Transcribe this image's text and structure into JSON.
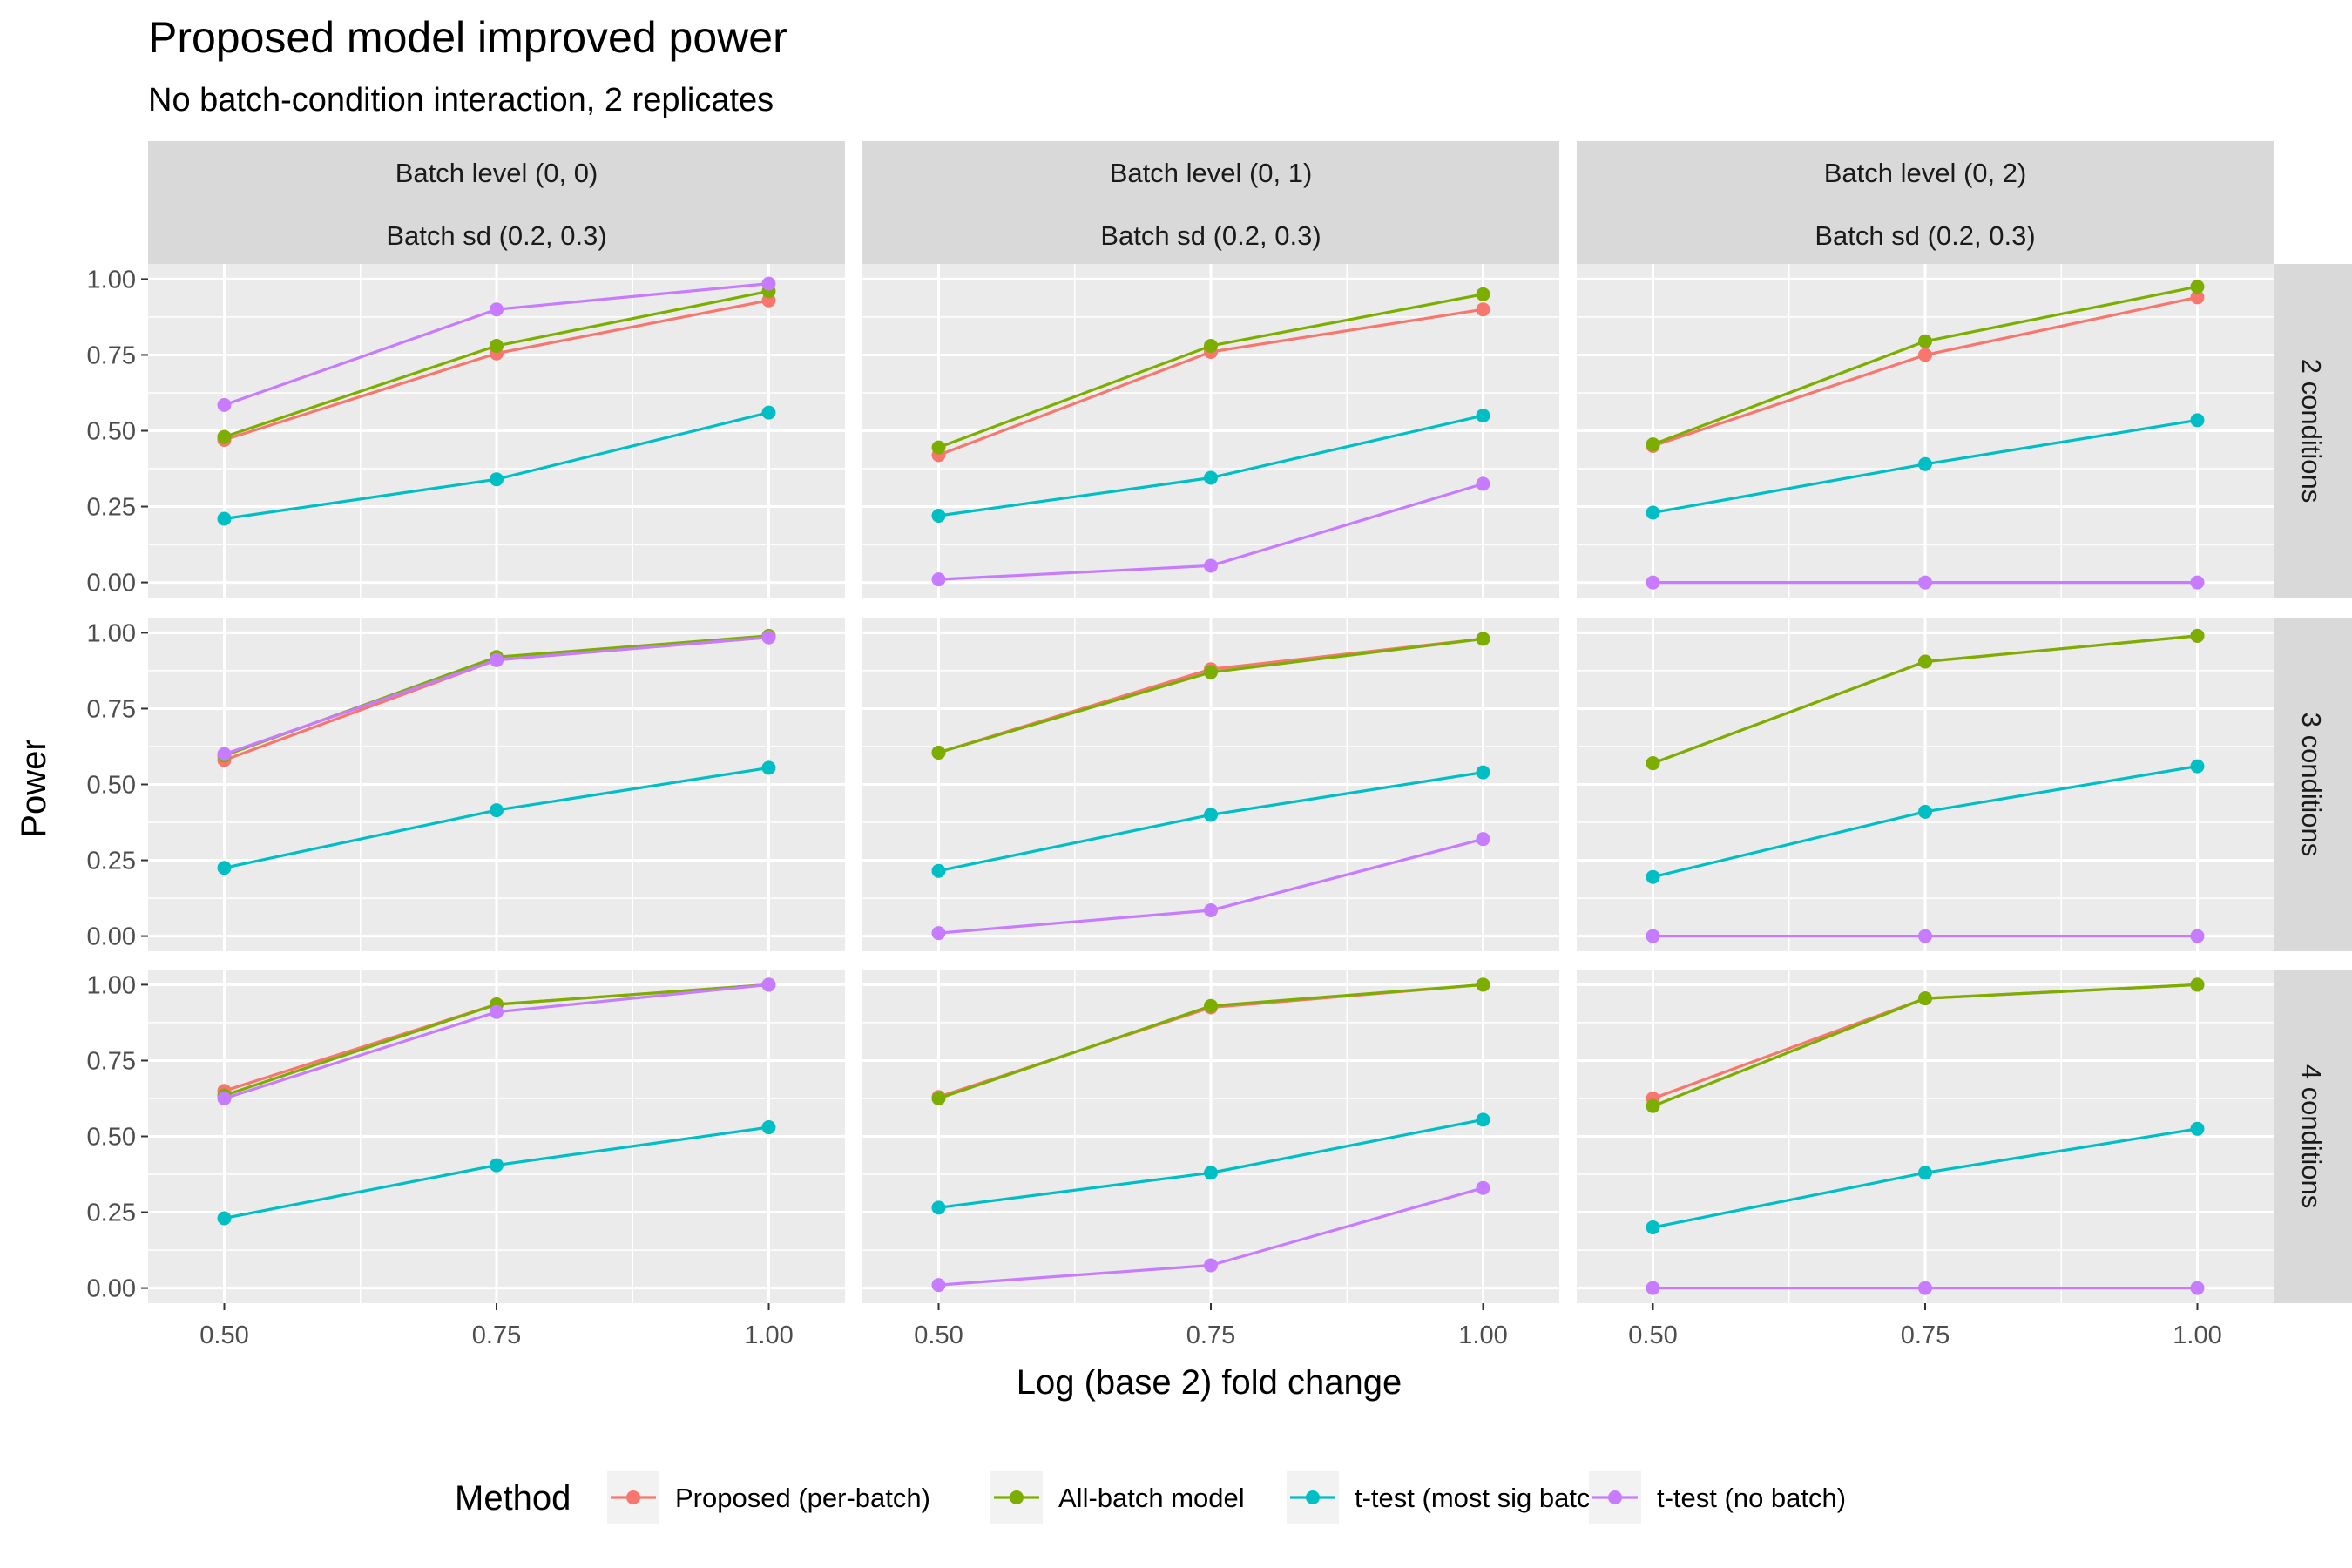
{
  "chart_data": {
    "type": "line",
    "title": "Proposed model improved power",
    "subtitle": "No batch-condition interaction, 2 replicates",
    "xlabel": "Log (base 2) fold change",
    "ylabel": "Power",
    "x": [
      0.5,
      0.75,
      1.0
    ],
    "x_tick_labels": [
      "0.50",
      "0.75",
      "1.00"
    ],
    "xlim": [
      0.43,
      1.07
    ],
    "ylim": [
      -0.05,
      1.05
    ],
    "y_ticks": [
      0,
      0.25,
      0.5,
      0.75,
      1.0
    ],
    "y_tick_labels": [
      "0.00",
      "0.25",
      "0.50",
      "0.75",
      "1.00"
    ],
    "grid": true,
    "legend": {
      "title": "Method",
      "position": "bottom",
      "entries": [
        "Proposed (per-batch)",
        "All-batch model",
        "t-test (most sig batch)",
        "t-test (no batch)"
      ]
    },
    "series_colors": {
      "Proposed (per-batch)": "#F8766D",
      "All-batch model": "#7CAE00",
      "t-test (most sig batch)": "#00BFC4",
      "t-test (no batch)": "#C77CFF"
    },
    "col_strips": [
      [
        "Batch level (0, 0)",
        "Batch sd (0.2, 0.3)"
      ],
      [
        "Batch level (0, 1)",
        "Batch sd (0.2, 0.3)"
      ],
      [
        "Batch level (0, 2)",
        "Batch sd (0.2, 0.3)"
      ]
    ],
    "row_strips": [
      "2 conditions",
      "3 conditions",
      "4 conditions"
    ],
    "panels": [
      [
        {
          "series": [
            {
              "name": "Proposed (per-batch)",
              "values": [
                0.47,
                0.755,
                0.93
              ]
            },
            {
              "name": "All-batch model",
              "values": [
                0.48,
                0.78,
                0.96
              ]
            },
            {
              "name": "t-test (most sig batch)",
              "values": [
                0.21,
                0.34,
                0.56
              ]
            },
            {
              "name": "t-test (no batch)",
              "values": [
                0.585,
                0.9,
                0.985
              ]
            }
          ]
        },
        {
          "series": [
            {
              "name": "Proposed (per-batch)",
              "values": [
                0.42,
                0.76,
                0.9
              ]
            },
            {
              "name": "All-batch model",
              "values": [
                0.445,
                0.78,
                0.95
              ]
            },
            {
              "name": "t-test (most sig batch)",
              "values": [
                0.22,
                0.345,
                0.55
              ]
            },
            {
              "name": "t-test (no batch)",
              "values": [
                0.01,
                0.055,
                0.325
              ]
            }
          ]
        },
        {
          "series": [
            {
              "name": "Proposed (per-batch)",
              "values": [
                0.45,
                0.75,
                0.94
              ]
            },
            {
              "name": "All-batch model",
              "values": [
                0.455,
                0.795,
                0.975
              ]
            },
            {
              "name": "t-test (most sig batch)",
              "values": [
                0.23,
                0.39,
                0.535
              ]
            },
            {
              "name": "t-test (no batch)",
              "values": [
                0.0,
                0.0,
                0.0
              ]
            }
          ]
        }
      ],
      [
        {
          "series": [
            {
              "name": "Proposed (per-batch)",
              "values": [
                0.58,
                0.91,
                0.985
              ]
            },
            {
              "name": "All-batch model",
              "values": [
                0.595,
                0.92,
                0.99
              ]
            },
            {
              "name": "t-test (most sig batch)",
              "values": [
                0.225,
                0.415,
                0.555
              ]
            },
            {
              "name": "t-test (no batch)",
              "values": [
                0.6,
                0.91,
                0.985
              ]
            }
          ]
        },
        {
          "series": [
            {
              "name": "Proposed (per-batch)",
              "values": [
                0.605,
                0.88,
                0.98
              ]
            },
            {
              "name": "All-batch model",
              "values": [
                0.605,
                0.87,
                0.98
              ]
            },
            {
              "name": "t-test (most sig batch)",
              "values": [
                0.215,
                0.4,
                0.54
              ]
            },
            {
              "name": "t-test (no batch)",
              "values": [
                0.01,
                0.085,
                0.32
              ]
            }
          ]
        },
        {
          "series": [
            {
              "name": "Proposed (per-batch)",
              "values": [
                0.57,
                0.905,
                0.99
              ]
            },
            {
              "name": "All-batch model",
              "values": [
                0.57,
                0.905,
                0.99
              ]
            },
            {
              "name": "t-test (most sig batch)",
              "values": [
                0.195,
                0.41,
                0.56
              ]
            },
            {
              "name": "t-test (no batch)",
              "values": [
                0.0,
                0.0,
                0.0
              ]
            }
          ]
        }
      ],
      [
        {
          "series": [
            {
              "name": "Proposed (per-batch)",
              "values": [
                0.65,
                0.935,
                1.0
              ]
            },
            {
              "name": "All-batch model",
              "values": [
                0.635,
                0.935,
                1.0
              ]
            },
            {
              "name": "t-test (most sig batch)",
              "values": [
                0.23,
                0.405,
                0.53
              ]
            },
            {
              "name": "t-test (no batch)",
              "values": [
                0.625,
                0.91,
                1.0
              ]
            }
          ]
        },
        {
          "series": [
            {
              "name": "Proposed (per-batch)",
              "values": [
                0.63,
                0.925,
                1.0
              ]
            },
            {
              "name": "All-batch model",
              "values": [
                0.625,
                0.93,
                1.0
              ]
            },
            {
              "name": "t-test (most sig batch)",
              "values": [
                0.265,
                0.38,
                0.555
              ]
            },
            {
              "name": "t-test (no batch)",
              "values": [
                0.01,
                0.075,
                0.33
              ]
            }
          ]
        },
        {
          "series": [
            {
              "name": "Proposed (per-batch)",
              "values": [
                0.625,
                0.955,
                1.0
              ]
            },
            {
              "name": "All-batch model",
              "values": [
                0.6,
                0.955,
                1.0
              ]
            },
            {
              "name": "t-test (most sig batch)",
              "values": [
                0.2,
                0.38,
                0.525
              ]
            },
            {
              "name": "t-test (no batch)",
              "values": [
                0.0,
                0.0,
                0.0
              ]
            }
          ]
        }
      ]
    ]
  }
}
